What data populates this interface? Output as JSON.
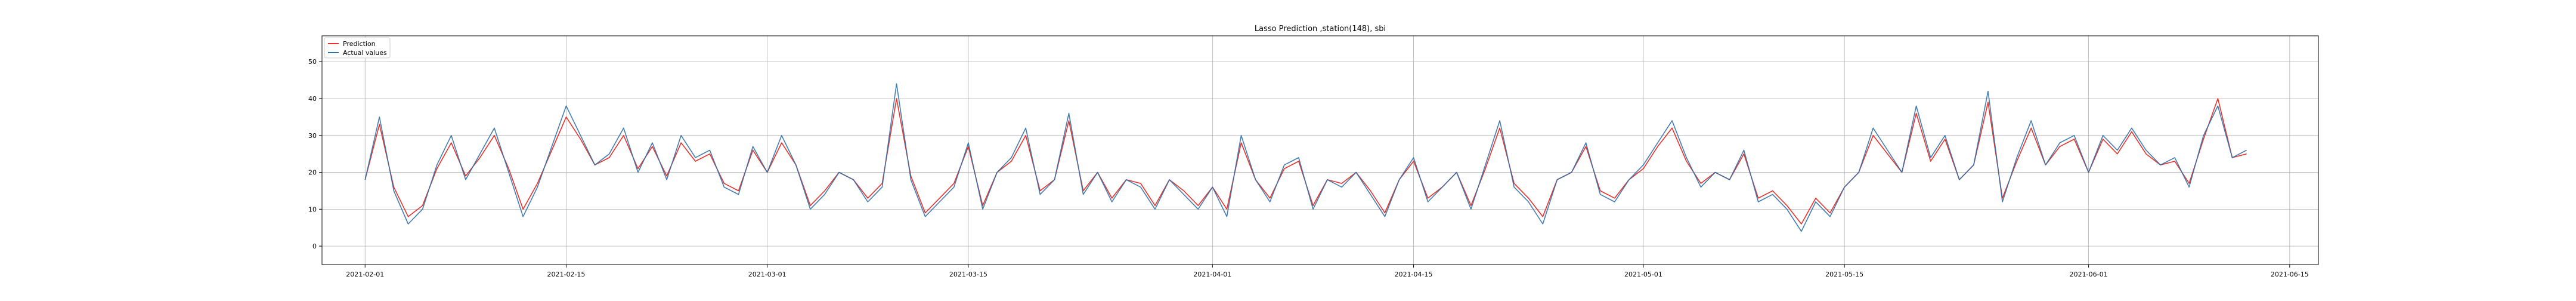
{
  "chart_data": {
    "type": "line",
    "title": "Lasso Prediction ,station(148), sbi",
    "xlabel": "",
    "ylabel": "",
    "xlim": [
      "2021-01-29",
      "2021-06-17"
    ],
    "ylim": [
      -5,
      57
    ],
    "grid": true,
    "legend_position": "top-left",
    "x_ticks": [
      "2021-02-01",
      "2021-02-15",
      "2021-03-01",
      "2021-03-15",
      "2021-04-01",
      "2021-04-15",
      "2021-05-01",
      "2021-05-15",
      "2021-06-01",
      "2021-06-15"
    ],
    "y_ticks": [
      0,
      10,
      20,
      30,
      40,
      50
    ],
    "colors": {
      "Prediction": "#e8312a",
      "Actual values": "#2f6ea8"
    },
    "series": [
      {
        "name": "Actual values",
        "x": [
          "2021-02-01",
          "2021-02-02",
          "2021-02-03",
          "2021-02-04",
          "2021-02-05",
          "2021-02-06",
          "2021-02-07",
          "2021-02-08",
          "2021-02-09",
          "2021-02-10",
          "2021-02-11",
          "2021-02-12",
          "2021-02-13",
          "2021-02-14",
          "2021-02-15",
          "2021-02-16",
          "2021-02-17",
          "2021-02-18",
          "2021-02-19",
          "2021-02-20",
          "2021-02-21",
          "2021-02-22",
          "2021-02-23",
          "2021-02-24",
          "2021-02-25",
          "2021-02-26",
          "2021-02-27",
          "2021-02-28",
          "2021-03-01",
          "2021-03-02",
          "2021-03-03",
          "2021-03-04",
          "2021-03-05",
          "2021-03-06",
          "2021-03-07",
          "2021-03-08",
          "2021-03-09",
          "2021-03-10",
          "2021-03-11",
          "2021-03-12",
          "2021-03-13",
          "2021-03-14",
          "2021-03-15",
          "2021-03-16",
          "2021-03-17",
          "2021-03-18",
          "2021-03-19",
          "2021-03-20",
          "2021-03-21",
          "2021-03-22",
          "2021-03-23",
          "2021-03-24",
          "2021-03-25",
          "2021-03-26",
          "2021-03-27",
          "2021-03-28",
          "2021-03-29",
          "2021-03-30",
          "2021-03-31",
          "2021-04-01",
          "2021-04-02",
          "2021-04-03",
          "2021-04-04",
          "2021-04-05",
          "2021-04-06",
          "2021-04-07",
          "2021-04-08",
          "2021-04-09",
          "2021-04-10",
          "2021-04-11",
          "2021-04-12",
          "2021-04-13",
          "2021-04-14",
          "2021-04-15",
          "2021-04-16",
          "2021-04-17",
          "2021-04-18",
          "2021-04-19",
          "2021-04-20",
          "2021-04-21",
          "2021-04-22",
          "2021-04-23",
          "2021-04-24",
          "2021-04-25",
          "2021-04-26",
          "2021-04-27",
          "2021-04-28",
          "2021-04-29",
          "2021-04-30",
          "2021-05-01",
          "2021-05-02",
          "2021-05-03",
          "2021-05-04",
          "2021-05-05",
          "2021-05-06",
          "2021-05-07",
          "2021-05-08",
          "2021-05-09",
          "2021-05-10",
          "2021-05-11",
          "2021-05-12",
          "2021-05-13",
          "2021-05-14",
          "2021-05-15",
          "2021-05-16",
          "2021-05-17",
          "2021-05-18",
          "2021-05-19",
          "2021-05-20",
          "2021-05-21",
          "2021-05-22",
          "2021-05-23",
          "2021-05-24",
          "2021-05-25",
          "2021-05-26",
          "2021-05-27",
          "2021-05-28",
          "2021-05-29",
          "2021-05-30",
          "2021-05-31",
          "2021-06-01",
          "2021-06-02",
          "2021-06-03",
          "2021-06-04",
          "2021-06-05",
          "2021-06-06",
          "2021-06-07",
          "2021-06-08",
          "2021-06-09",
          "2021-06-10",
          "2021-06-11",
          "2021-06-12"
        ],
        "values": [
          18,
          35,
          15,
          6,
          10,
          22,
          30,
          18,
          25,
          32,
          20,
          8,
          16,
          27,
          38,
          30,
          22,
          25,
          32,
          20,
          28,
          18,
          30,
          24,
          26,
          16,
          14,
          27,
          20,
          30,
          22,
          10,
          14,
          20,
          18,
          12,
          16,
          44,
          18,
          8,
          12,
          16,
          28,
          10,
          20,
          24,
          32,
          14,
          18,
          36,
          14,
          20,
          12,
          18,
          16,
          10,
          18,
          14,
          10,
          16,
          8,
          30,
          18,
          12,
          22,
          24,
          10,
          18,
          16,
          20,
          14,
          8,
          18,
          24,
          12,
          16,
          20,
          10,
          22,
          34,
          16,
          12,
          6,
          18,
          20,
          28,
          14,
          12,
          18,
          22,
          28,
          34,
          24,
          16,
          20,
          18,
          26,
          12,
          14,
          10,
          4,
          12,
          8,
          16,
          20,
          32,
          26,
          20,
          38,
          24,
          30,
          18,
          22,
          42,
          12,
          24,
          34,
          22,
          28,
          30,
          20,
          30,
          26,
          32,
          26,
          22,
          24,
          16,
          30,
          38,
          24,
          26
        ]
      },
      {
        "name": "Prediction",
        "x": [
          "2021-02-01",
          "2021-02-02",
          "2021-02-03",
          "2021-02-04",
          "2021-02-05",
          "2021-02-06",
          "2021-02-07",
          "2021-02-08",
          "2021-02-09",
          "2021-02-10",
          "2021-02-11",
          "2021-02-12",
          "2021-02-13",
          "2021-02-14",
          "2021-02-15",
          "2021-02-16",
          "2021-02-17",
          "2021-02-18",
          "2021-02-19",
          "2021-02-20",
          "2021-02-21",
          "2021-02-22",
          "2021-02-23",
          "2021-02-24",
          "2021-02-25",
          "2021-02-26",
          "2021-02-27",
          "2021-02-28",
          "2021-03-01",
          "2021-03-02",
          "2021-03-03",
          "2021-03-04",
          "2021-03-05",
          "2021-03-06",
          "2021-03-07",
          "2021-03-08",
          "2021-03-09",
          "2021-03-10",
          "2021-03-11",
          "2021-03-12",
          "2021-03-13",
          "2021-03-14",
          "2021-03-15",
          "2021-03-16",
          "2021-03-17",
          "2021-03-18",
          "2021-03-19",
          "2021-03-20",
          "2021-03-21",
          "2021-03-22",
          "2021-03-23",
          "2021-03-24",
          "2021-03-25",
          "2021-03-26",
          "2021-03-27",
          "2021-03-28",
          "2021-03-29",
          "2021-03-30",
          "2021-03-31",
          "2021-04-01",
          "2021-04-02",
          "2021-04-03",
          "2021-04-04",
          "2021-04-05",
          "2021-04-06",
          "2021-04-07",
          "2021-04-08",
          "2021-04-09",
          "2021-04-10",
          "2021-04-11",
          "2021-04-12",
          "2021-04-13",
          "2021-04-14",
          "2021-04-15",
          "2021-04-16",
          "2021-04-17",
          "2021-04-18",
          "2021-04-19",
          "2021-04-20",
          "2021-04-21",
          "2021-04-22",
          "2021-04-23",
          "2021-04-24",
          "2021-04-25",
          "2021-04-26",
          "2021-04-27",
          "2021-04-28",
          "2021-04-29",
          "2021-04-30",
          "2021-05-01",
          "2021-05-02",
          "2021-05-03",
          "2021-05-04",
          "2021-05-05",
          "2021-05-06",
          "2021-05-07",
          "2021-05-08",
          "2021-05-09",
          "2021-05-10",
          "2021-05-11",
          "2021-05-12",
          "2021-05-13",
          "2021-05-14",
          "2021-05-15",
          "2021-05-16",
          "2021-05-17",
          "2021-05-18",
          "2021-05-19",
          "2021-05-20",
          "2021-05-21",
          "2021-05-22",
          "2021-05-23",
          "2021-05-24",
          "2021-05-25",
          "2021-05-26",
          "2021-05-27",
          "2021-05-28",
          "2021-05-29",
          "2021-05-30",
          "2021-05-31",
          "2021-06-01",
          "2021-06-02",
          "2021-06-03",
          "2021-06-04",
          "2021-06-05",
          "2021-06-06",
          "2021-06-07",
          "2021-06-08",
          "2021-06-09",
          "2021-06-10",
          "2021-06-11",
          "2021-06-12"
        ],
        "values": [
          18,
          33,
          16,
          8,
          11,
          21,
          28,
          19,
          24,
          30,
          21,
          10,
          17,
          26,
          35,
          29,
          22,
          24,
          30,
          21,
          27,
          19,
          28,
          23,
          25,
          17,
          15,
          26,
          20,
          28,
          22,
          11,
          15,
          20,
          18,
          13,
          17,
          40,
          19,
          9,
          13,
          17,
          27,
          11,
          20,
          23,
          30,
          15,
          18,
          34,
          15,
          20,
          13,
          18,
          17,
          11,
          18,
          15,
          11,
          16,
          10,
          28,
          18,
          13,
          21,
          23,
          11,
          18,
          17,
          20,
          15,
          9,
          18,
          23,
          13,
          16,
          20,
          11,
          21,
          32,
          17,
          13,
          8,
          18,
          20,
          27,
          15,
          13,
          18,
          21,
          27,
          32,
          23,
          17,
          20,
          18,
          25,
          13,
          15,
          11,
          6,
          13,
          9,
          16,
          20,
          30,
          25,
          20,
          36,
          23,
          29,
          18,
          22,
          39,
          13,
          23,
          32,
          22,
          27,
          29,
          20,
          29,
          25,
          31,
          25,
          22,
          23,
          17,
          29,
          40,
          24,
          25
        ]
      }
    ]
  }
}
